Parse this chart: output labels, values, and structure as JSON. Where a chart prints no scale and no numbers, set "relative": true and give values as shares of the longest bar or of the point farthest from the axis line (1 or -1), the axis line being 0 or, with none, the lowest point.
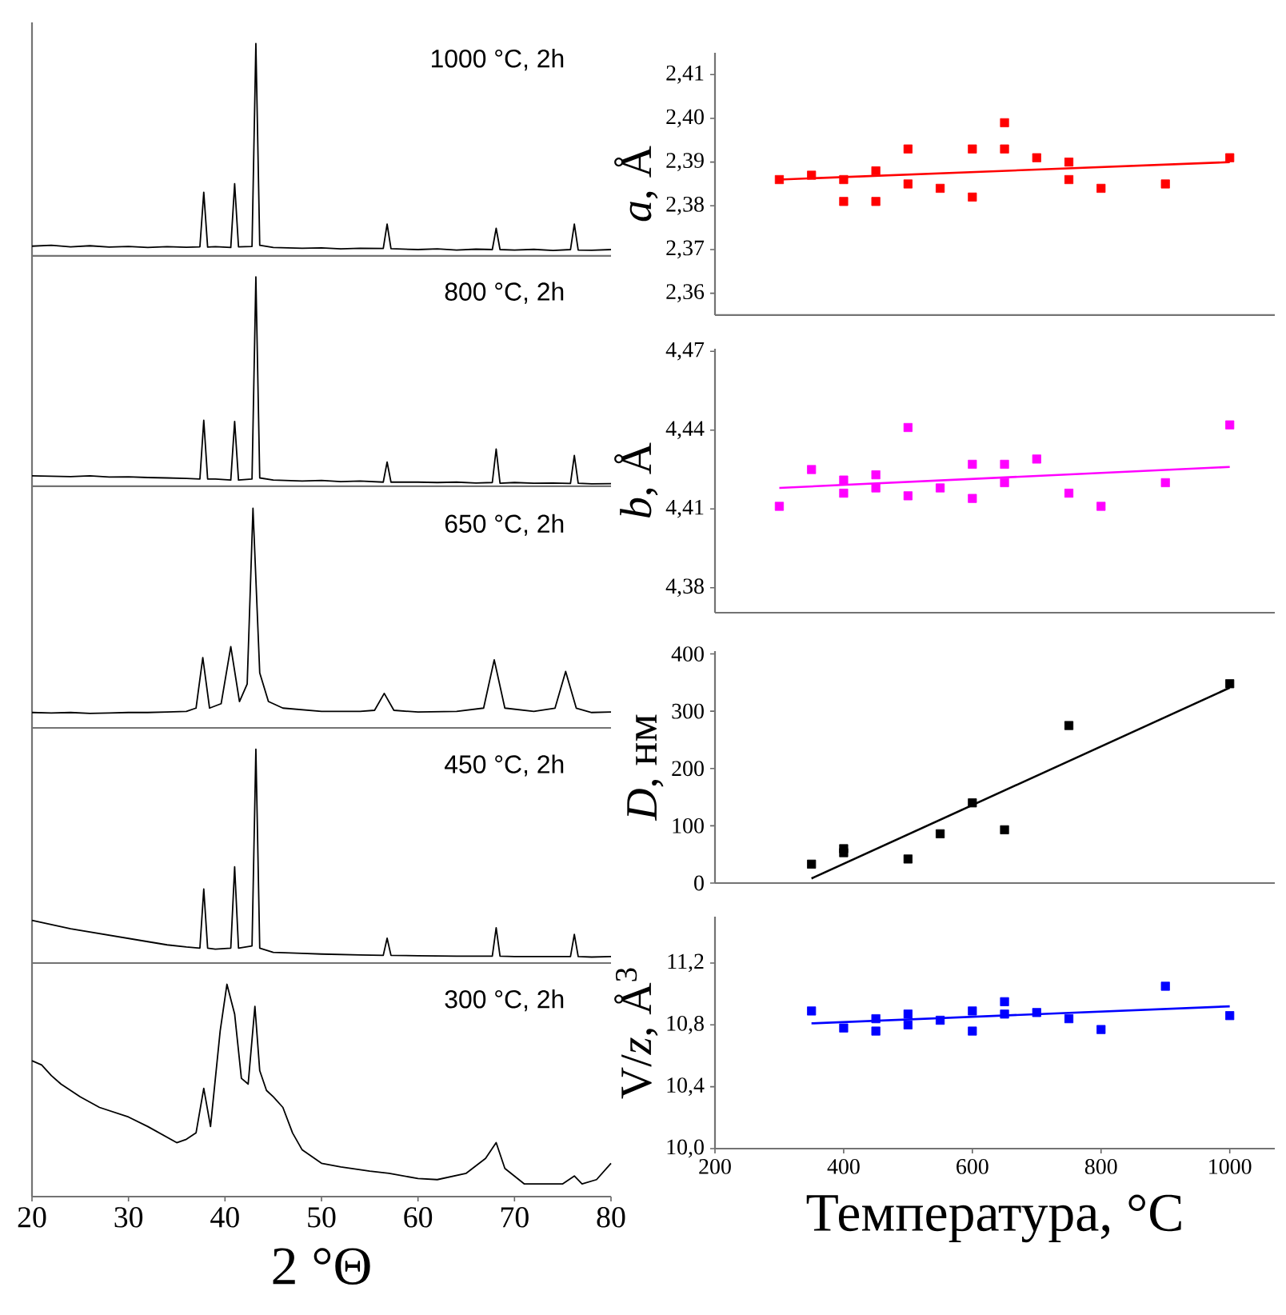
{
  "chart_data": [
    {
      "type": "line",
      "relative": true,
      "xlim": [
        20,
        80
      ],
      "tick_labels": false,
      "annotations": [
        "1000 °C, 2h"
      ],
      "x": [
        20,
        22,
        24,
        26,
        28,
        30,
        32,
        34,
        36,
        37.4,
        37.8,
        38.2,
        39,
        40.6,
        41,
        41.4,
        42.8,
        43.2,
        43.6,
        45,
        48,
        50,
        52,
        54,
        56.4,
        56.8,
        57.2,
        60,
        62,
        64,
        66,
        67.7,
        68.1,
        68.5,
        70,
        72,
        74,
        75.8,
        76.2,
        76.6,
        78,
        80
      ],
      "series": [
        {
          "color": "#000000",
          "values": [
            0.046,
            0.05,
            0.043,
            0.048,
            0.042,
            0.045,
            0.04,
            0.044,
            0.041,
            0.043,
            0.3,
            0.042,
            0.044,
            0.04,
            0.34,
            0.043,
            0.045,
            1,
            0.05,
            0.04,
            0.036,
            0.038,
            0.033,
            0.036,
            0.035,
            0.15,
            0.034,
            0.03,
            0.033,
            0.028,
            0.032,
            0.03,
            0.13,
            0.03,
            0.028,
            0.031,
            0.026,
            0.03,
            0.15,
            0.028,
            0.027,
            0.03
          ]
        }
      ]
    },
    {
      "type": "line",
      "relative": true,
      "xlim": [
        20,
        80
      ],
      "tick_labels": false,
      "annotations": [
        "800 °C, 2h"
      ],
      "x": [
        20,
        22,
        24,
        26,
        28,
        30,
        32,
        34,
        36,
        37.4,
        37.8,
        38.2,
        39,
        40.6,
        41,
        41.4,
        42.8,
        43.2,
        43.6,
        45,
        48,
        50,
        52,
        54,
        56.4,
        56.8,
        57.2,
        60,
        62,
        64,
        66,
        67.7,
        68.1,
        68.5,
        70,
        72,
        74,
        75.8,
        76.2,
        76.6,
        78,
        80
      ],
      "series": [
        {
          "color": "#000000",
          "values": [
            0.05,
            0.048,
            0.046,
            0.05,
            0.044,
            0.045,
            0.042,
            0.04,
            0.038,
            0.035,
            0.315,
            0.035,
            0.035,
            0.03,
            0.31,
            0.03,
            0.035,
            1,
            0.04,
            0.03,
            0.025,
            0.028,
            0.022,
            0.025,
            0.02,
            0.116,
            0.02,
            0.02,
            0.018,
            0.02,
            0.016,
            0.018,
            0.178,
            0.015,
            0.018,
            0.015,
            0.016,
            0.014,
            0.147,
            0.015,
            0.012,
            0.013
          ]
        }
      ]
    },
    {
      "type": "line",
      "relative": true,
      "xlim": [
        20,
        80
      ],
      "tick_labels": false,
      "annotations": [
        "650 °C, 2h"
      ],
      "x": [
        20,
        22,
        24,
        26,
        28,
        30,
        32,
        34,
        36,
        37,
        37.7,
        38.4,
        39.6,
        40.6,
        41.5,
        42.3,
        42.9,
        43.6,
        44.5,
        46,
        50,
        54,
        55.5,
        56.5,
        57.5,
        60,
        64,
        66.8,
        67.9,
        69,
        72,
        74.2,
        75.3,
        76.4,
        78,
        80
      ],
      "series": [
        {
          "color": "#000000",
          "values": [
            0.07,
            0.068,
            0.07,
            0.066,
            0.068,
            0.07,
            0.07,
            0.072,
            0.075,
            0.09,
            0.32,
            0.09,
            0.11,
            0.37,
            0.12,
            0.2,
            1,
            0.25,
            0.12,
            0.09,
            0.075,
            0.075,
            0.08,
            0.157,
            0.08,
            0.072,
            0.075,
            0.09,
            0.31,
            0.09,
            0.075,
            0.09,
            0.257,
            0.09,
            0.07,
            0.072
          ]
        }
      ]
    },
    {
      "type": "line",
      "relative": true,
      "xlim": [
        20,
        80
      ],
      "tick_labels": false,
      "annotations": [
        "450 °C, 2h"
      ],
      "x": [
        20,
        22,
        24,
        26,
        28,
        30,
        32,
        34,
        36,
        37.4,
        37.8,
        38.2,
        39,
        40.6,
        41,
        41.4,
        42.8,
        43.2,
        43.6,
        45,
        48,
        50,
        52,
        54,
        56.4,
        56.8,
        57.2,
        60,
        62,
        64,
        66,
        67.7,
        68.1,
        68.5,
        70,
        72,
        74,
        75.8,
        76.2,
        76.6,
        78,
        80
      ],
      "series": [
        {
          "color": "#000000",
          "values": [
            0.2,
            0.18,
            0.16,
            0.145,
            0.13,
            0.115,
            0.1,
            0.085,
            0.075,
            0.07,
            0.346,
            0.07,
            0.065,
            0.07,
            0.45,
            0.07,
            0.08,
            1,
            0.07,
            0.05,
            0.045,
            0.042,
            0.04,
            0.038,
            0.036,
            0.116,
            0.036,
            0.034,
            0.033,
            0.032,
            0.032,
            0.032,
            0.165,
            0.032,
            0.03,
            0.03,
            0.03,
            0.03,
            0.134,
            0.03,
            0.028,
            0.03
          ]
        }
      ]
    },
    {
      "type": "line",
      "relative": true,
      "xlim": [
        20,
        80
      ],
      "xticks": [
        20,
        30,
        40,
        50,
        60,
        70,
        80
      ],
      "tick_labels": "x",
      "xlabel": "2 °Θ",
      "annotations": [
        "300 °C, 2h"
      ],
      "x": [
        20,
        21,
        22,
        23,
        25,
        27,
        30,
        32,
        35,
        36,
        37,
        37.8,
        38.5,
        39.5,
        40.2,
        41,
        41.7,
        42.4,
        43.1,
        43.6,
        44.3,
        45,
        46,
        47,
        48,
        50,
        52,
        55,
        57,
        60,
        62,
        65,
        67,
        68.1,
        69,
        71,
        73,
        75,
        76.2,
        77,
        78.5,
        80
      ],
      "series": [
        {
          "color": "#000000",
          "values": [
            0.64,
            0.62,
            0.57,
            0.53,
            0.47,
            0.42,
            0.375,
            0.33,
            0.254,
            0.27,
            0.3,
            0.51,
            0.33,
            0.78,
            1,
            0.86,
            0.557,
            0.53,
            0.896,
            0.593,
            0.5,
            0.47,
            0.42,
            0.3,
            0.22,
            0.157,
            0.14,
            0.12,
            0.11,
            0.085,
            0.08,
            0.11,
            0.18,
            0.254,
            0.133,
            0.06,
            0.06,
            0.06,
            0.097,
            0.06,
            0.08,
            0.157
          ]
        }
      ]
    },
    {
      "type": "scatter",
      "xlim": [
        200,
        1070
      ],
      "ylim": [
        2.355,
        2.415
      ],
      "tick_labels": "y",
      "ylabel": "*a*, Å",
      "yticks": [
        {
          "value": 2.36,
          "label": "2,36"
        },
        {
          "value": 2.37,
          "label": "2,37"
        },
        {
          "value": 2.38,
          "label": "2,38"
        },
        {
          "value": 2.39,
          "label": "2,39"
        },
        {
          "value": 2.4,
          "label": "2,40"
        },
        {
          "value": 2.41,
          "label": "2,41"
        }
      ],
      "series": [
        {
          "type": "scatter",
          "marker": "square",
          "color": "#ff0000",
          "x": [
            300,
            350,
            400,
            400,
            450,
            450,
            500,
            500,
            550,
            600,
            600,
            650,
            650,
            700,
            750,
            750,
            800,
            900,
            1000
          ],
          "values": [
            2.386,
            2.387,
            2.386,
            2.381,
            2.388,
            2.381,
            2.393,
            2.385,
            2.384,
            2.393,
            2.382,
            2.399,
            2.393,
            2.391,
            2.39,
            2.386,
            2.384,
            2.385,
            2.391
          ]
        },
        {
          "type": "line",
          "color": "#ff0000",
          "x": [
            300,
            1000
          ],
          "values": [
            2.386,
            2.39
          ]
        }
      ]
    },
    {
      "type": "scatter",
      "xlim": [
        200,
        1070
      ],
      "ylim": [
        4.3705,
        4.471
      ],
      "tick_labels": "y",
      "ylabel": "*b*, Å",
      "yticks": [
        {
          "value": 4.38,
          "label": "4,38"
        },
        {
          "value": 4.41,
          "label": "4,41"
        },
        {
          "value": 4.44,
          "label": "4,44"
        },
        {
          "value": 4.47,
          "label": "4,47"
        }
      ],
      "series": [
        {
          "type": "scatter",
          "marker": "square",
          "color": "#ff00ff",
          "x": [
            300,
            350,
            400,
            400,
            450,
            450,
            500,
            500,
            550,
            600,
            600,
            650,
            650,
            700,
            750,
            800,
            900,
            1000
          ],
          "values": [
            4.411,
            4.425,
            4.421,
            4.416,
            4.423,
            4.418,
            4.441,
            4.415,
            4.418,
            4.427,
            4.414,
            4.427,
            4.42,
            4.429,
            4.416,
            4.411,
            4.42,
            4.442
          ]
        },
        {
          "type": "line",
          "color": "#ff00ff",
          "x": [
            300,
            1000
          ],
          "values": [
            4.418,
            4.426
          ]
        }
      ]
    },
    {
      "type": "scatter",
      "xlim": [
        200,
        1070
      ],
      "ylim": [
        0,
        405
      ],
      "tick_labels": "y",
      "ylabel": "*D*, нм",
      "yticks": [
        0,
        100,
        200,
        300,
        400
      ],
      "series": [
        {
          "type": "scatter",
          "marker": "square",
          "color": "#000000",
          "x": [
            350,
            400,
            400,
            500,
            550,
            600,
            650,
            750,
            1000
          ],
          "values": [
            33,
            60,
            53,
            42,
            86,
            140,
            93,
            275,
            348
          ]
        },
        {
          "type": "line",
          "color": "#000000",
          "x": [
            350,
            1000
          ],
          "values": [
            8,
            341
          ]
        }
      ]
    },
    {
      "type": "scatter",
      "xlim": [
        200,
        1070
      ],
      "ylim": [
        10.0,
        11.5
      ],
      "xticks": [
        200,
        400,
        600,
        800,
        1000
      ],
      "xlabel": "Температура, °C",
      "ylabel": "V/*z*, Å$^{3}$",
      "yticks": [
        {
          "value": 10.0,
          "label": "10,0"
        },
        {
          "value": 10.4,
          "label": "10,4"
        },
        {
          "value": 10.8,
          "label": "10,8"
        },
        {
          "value": 11.2,
          "label": "11,2"
        }
      ],
      "series": [
        {
          "type": "scatter",
          "marker": "square",
          "color": "#0000ff",
          "x": [
            350,
            400,
            450,
            450,
            500,
            500,
            550,
            600,
            600,
            650,
            650,
            700,
            750,
            800,
            900,
            1000
          ],
          "values": [
            10.89,
            10.78,
            10.84,
            10.76,
            10.87,
            10.8,
            10.83,
            10.89,
            10.76,
            10.95,
            10.87,
            10.88,
            10.84,
            10.77,
            11.05,
            10.86
          ]
        },
        {
          "type": "line",
          "color": "#0000ff",
          "x": [
            350,
            1000
          ],
          "values": [
            10.81,
            10.92
          ]
        }
      ]
    }
  ]
}
